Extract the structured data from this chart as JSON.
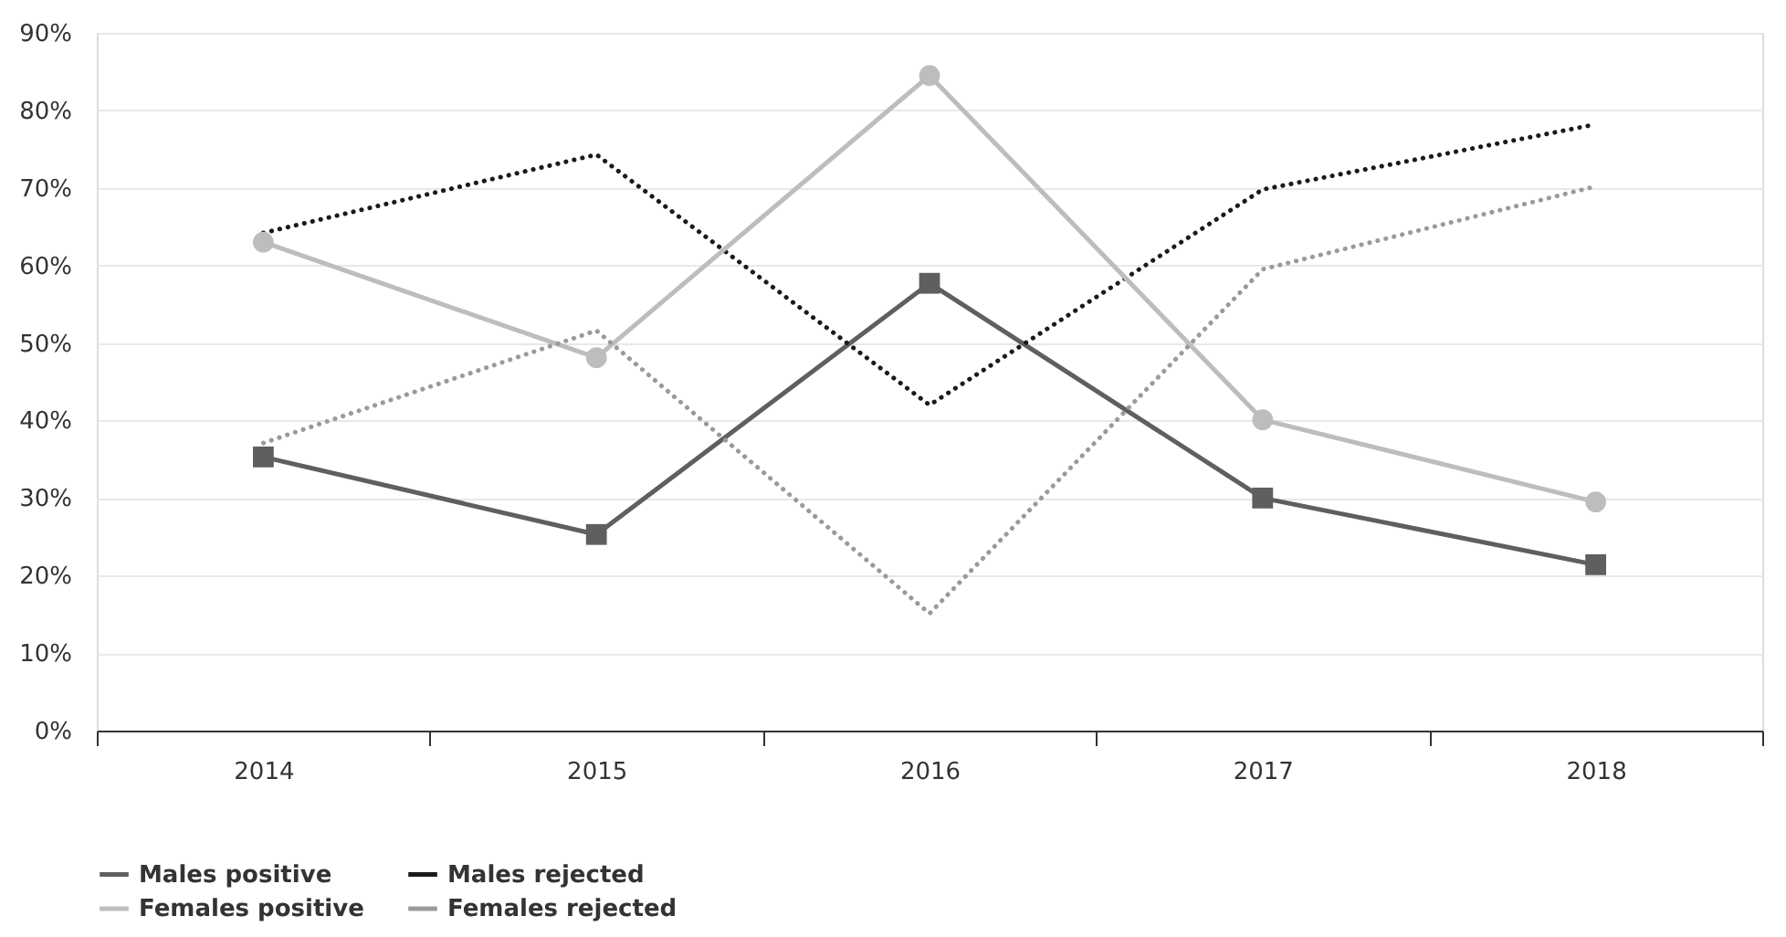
{
  "chart_data": {
    "type": "line",
    "categories": [
      "2014",
      "2015",
      "2016",
      "2017",
      "2018"
    ],
    "series": [
      {
        "name": "Males positive",
        "color": "#5f5f60",
        "marker": "square",
        "line_style": "solid",
        "values": [
          35.3,
          25.3,
          57.7,
          30.0,
          21.4
        ]
      },
      {
        "name": "Males rejected",
        "color": "#1a1a1a",
        "marker": "none",
        "line_style": "dotted",
        "values": [
          64.2,
          74.3,
          42.0,
          69.8,
          78.2
        ]
      },
      {
        "name": "Females positive",
        "color": "#bdbdbf",
        "marker": "circle",
        "line_style": "solid",
        "values": [
          63.0,
          48.1,
          84.5,
          40.1,
          29.5
        ]
      },
      {
        "name": "Females rejected",
        "color": "#9a9a9a",
        "marker": "none",
        "line_style": "dotted",
        "values": [
          37.1,
          51.6,
          15.1,
          59.5,
          70.2
        ]
      }
    ],
    "ylim": [
      0,
      90
    ],
    "yticks": [
      {
        "value": 0,
        "label": "0%"
      },
      {
        "value": 10,
        "label": "10%"
      },
      {
        "value": 20,
        "label": "20%"
      },
      {
        "value": 30,
        "label": "30%"
      },
      {
        "value": 40,
        "label": "40%"
      },
      {
        "value": 50,
        "label": "50%"
      },
      {
        "value": 60,
        "label": "60%"
      },
      {
        "value": 70,
        "label": "70%"
      },
      {
        "value": 80,
        "label": "80%"
      },
      {
        "value": 90,
        "label": "90%"
      }
    ],
    "grid": "y",
    "legend": "bottom"
  }
}
